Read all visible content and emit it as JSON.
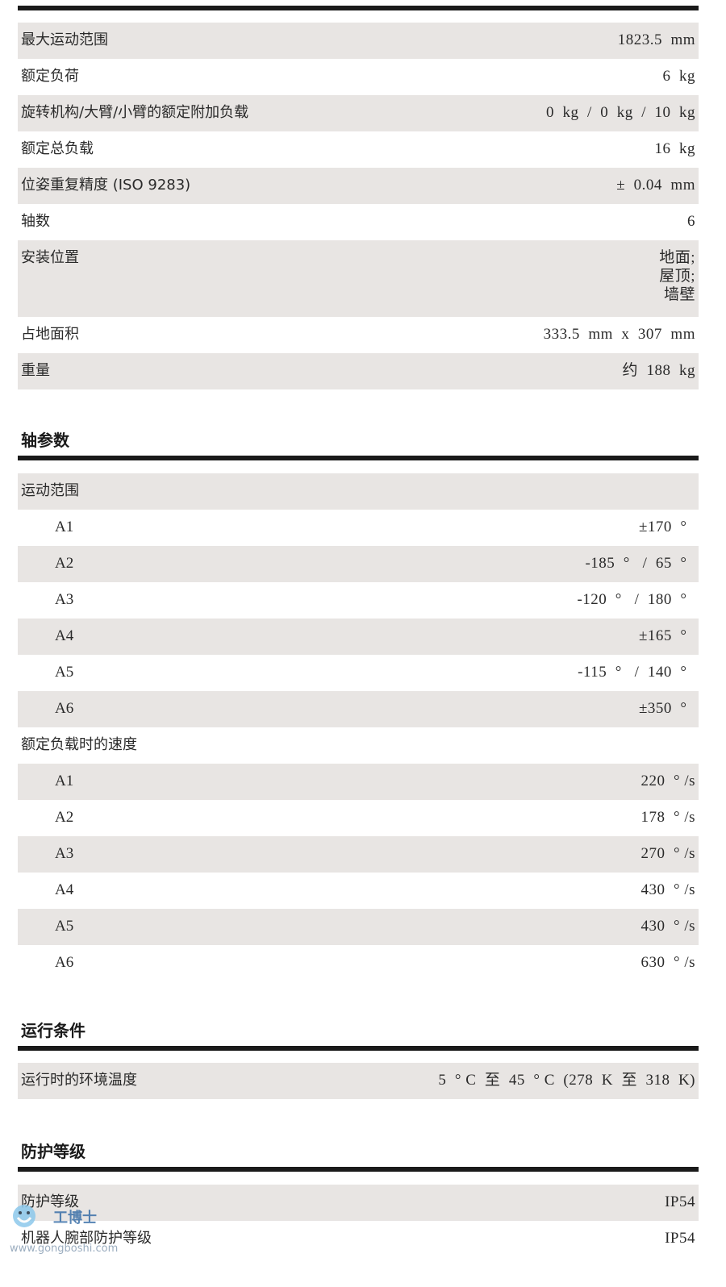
{
  "general": [
    {
      "label": "最大运动范围",
      "value": "1823.5  mm"
    },
    {
      "label": "额定负荷",
      "value": "6  kg"
    },
    {
      "label": "旋转机构/大臂/小臂的额定附加负载",
      "value": "0  kg  /  0  kg  /  10  kg"
    },
    {
      "label": "额定总负载",
      "value": "16  kg"
    },
    {
      "label": "位姿重复精度 (ISO 9283)",
      "value": "±  0.04  mm"
    },
    {
      "label": "轴数",
      "value": "6"
    },
    {
      "label": "安装位置",
      "value": "地面;\n屋顶;\n墙壁",
      "tall": true
    },
    {
      "label": "占地面积",
      "value": "333.5  mm  x  307  mm"
    },
    {
      "label": "重量",
      "value": "约  188  kg"
    }
  ],
  "axis_section": {
    "title": "轴参数",
    "rows": [
      {
        "label": "运动范围",
        "value": ""
      },
      {
        "label": "A1",
        "value": "±170  °  ",
        "sub": true
      },
      {
        "label": "A2",
        "value": "-185  °   /  65  °  ",
        "sub": true
      },
      {
        "label": "A3",
        "value": "-120  °   /  180  °  ",
        "sub": true
      },
      {
        "label": "A4",
        "value": "±165  °  ",
        "sub": true
      },
      {
        "label": "A5",
        "value": "-115  °   /  140  °  ",
        "sub": true
      },
      {
        "label": "A6",
        "value": "±350  °  ",
        "sub": true
      },
      {
        "label": "额定负载时的速度",
        "value": ""
      },
      {
        "label": "A1",
        "value": "220  ° /s",
        "sub": true
      },
      {
        "label": "A2",
        "value": "178  ° /s",
        "sub": true
      },
      {
        "label": "A3",
        "value": "270  ° /s",
        "sub": true
      },
      {
        "label": "A4",
        "value": "430  ° /s",
        "sub": true
      },
      {
        "label": "A5",
        "value": "430  ° /s",
        "sub": true
      },
      {
        "label": "A6",
        "value": "630  ° /s",
        "sub": true
      }
    ]
  },
  "operating_section": {
    "title": "运行条件",
    "rows": [
      {
        "label": "运行时的环境温度",
        "value": "5  ° C  至  45  ° C  (278  K  至  318  K)"
      }
    ]
  },
  "protection_section": {
    "title": "防护等级",
    "rows": [
      {
        "label": "防护等级",
        "value": "IP54"
      },
      {
        "label": "机器人腕部防护等级",
        "value": "IP54"
      }
    ]
  },
  "watermark": {
    "brand": "工博士",
    "url": "www.gongboshi.com"
  }
}
